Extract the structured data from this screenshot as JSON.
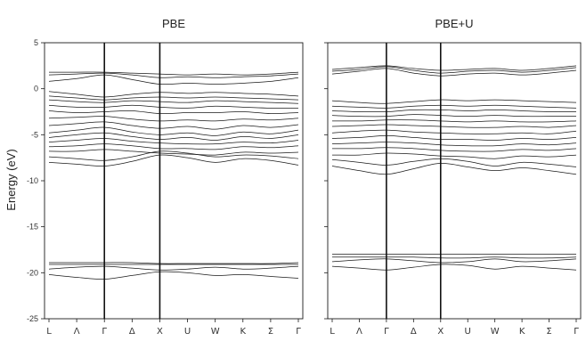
{
  "chart_data": [
    {
      "type": "line",
      "title": "PBE",
      "ylabel": "Energy (eV)",
      "ylim": [
        -25,
        5
      ],
      "yticks": [
        5,
        0,
        -5,
        -10,
        -15,
        -20,
        -25
      ],
      "xticklabels": [
        "L",
        "Λ",
        "Γ",
        "Δ",
        "X",
        "U",
        "W",
        "K",
        "Σ",
        "Γ"
      ],
      "high_symmetry_points": [
        "Γ",
        "X"
      ],
      "bands": [
        [
          1.8,
          1.8,
          1.8,
          1.7,
          1.6,
          1.5,
          1.6,
          1.5,
          1.6,
          1.8
        ],
        [
          1.5,
          1.6,
          1.7,
          1.5,
          1.2,
          1.3,
          1.2,
          1.3,
          1.4,
          1.6
        ],
        [
          0.8,
          1.1,
          1.5,
          1.0,
          0.5,
          0.6,
          0.5,
          0.6,
          0.8,
          1.2
        ],
        [
          -0.3,
          -0.6,
          -0.9,
          -0.6,
          -0.4,
          -0.5,
          -0.4,
          -0.5,
          -0.6,
          -0.8
        ],
        [
          -0.8,
          -1.0,
          -1.2,
          -1.0,
          -0.9,
          -1.0,
          -0.9,
          -1.0,
          -1.1,
          -1.2
        ],
        [
          -1.2,
          -1.4,
          -1.5,
          -1.3,
          -1.4,
          -1.5,
          -1.3,
          -1.4,
          -1.5,
          -1.6
        ],
        [
          -1.8,
          -2.0,
          -2.0,
          -1.8,
          -2.0,
          -2.1,
          -1.9,
          -2.0,
          -2.1,
          -2.1
        ],
        [
          -2.4,
          -2.6,
          -2.5,
          -2.4,
          -2.7,
          -2.6,
          -2.6,
          -2.5,
          -2.7,
          -2.6
        ],
        [
          -3.2,
          -3.1,
          -3.0,
          -3.3,
          -3.5,
          -3.4,
          -3.5,
          -3.3,
          -3.4,
          -3.2
        ],
        [
          -4.0,
          -3.8,
          -3.6,
          -4.0,
          -4.3,
          -4.1,
          -4.4,
          -4.0,
          -4.2,
          -3.9
        ],
        [
          -4.8,
          -4.5,
          -4.2,
          -4.7,
          -5.0,
          -4.8,
          -5.1,
          -4.7,
          -4.9,
          -4.5
        ],
        [
          -5.3,
          -5.0,
          -4.8,
          -5.2,
          -5.5,
          -5.3,
          -5.6,
          -5.2,
          -5.4,
          -5.0
        ],
        [
          -5.8,
          -5.6,
          -5.4,
          -5.7,
          -5.9,
          -6.0,
          -6.0,
          -5.8,
          -5.9,
          -5.6
        ],
        [
          -6.3,
          -6.2,
          -6.0,
          -6.2,
          -6.5,
          -6.5,
          -6.6,
          -6.3,
          -6.4,
          -6.2
        ],
        [
          -6.8,
          -6.8,
          -6.6,
          -6.8,
          -7.0,
          -7.1,
          -7.2,
          -6.9,
          -7.0,
          -6.9
        ],
        [
          -7.4,
          -7.6,
          -7.8,
          -7.4,
          -6.8,
          -7.0,
          -7.4,
          -7.2,
          -7.3,
          -7.6
        ],
        [
          -8.0,
          -8.2,
          -8.4,
          -7.9,
          -7.2,
          -7.5,
          -8.0,
          -7.6,
          -7.8,
          -8.3
        ],
        [
          -18.9,
          -18.9,
          -18.9,
          -18.9,
          -19.0,
          -19.0,
          -19.0,
          -19.0,
          -19.0,
          -18.9
        ],
        [
          -19.1,
          -19.1,
          -19.1,
          -19.1,
          -19.1,
          -19.1,
          -19.1,
          -19.1,
          -19.1,
          -19.1
        ],
        [
          -19.6,
          -19.4,
          -19.3,
          -19.5,
          -19.7,
          -19.6,
          -19.4,
          -19.6,
          -19.5,
          -19.3
        ],
        [
          -20.2,
          -20.5,
          -20.7,
          -20.3,
          -19.9,
          -20.0,
          -20.3,
          -20.2,
          -20.4,
          -20.6
        ]
      ]
    },
    {
      "type": "line",
      "title": "PBE+U",
      "ylim": [
        -25,
        5
      ],
      "yticks": [
        5,
        0,
        -5,
        -10,
        -15,
        -20,
        -25
      ],
      "xticklabels": [
        "L",
        "Λ",
        "Γ",
        "Δ",
        "X",
        "U",
        "W",
        "K",
        "Σ",
        "Γ"
      ],
      "high_symmetry_points": [
        "Γ",
        "X"
      ],
      "bands": [
        [
          2.1,
          2.3,
          2.5,
          2.2,
          2.0,
          2.1,
          2.2,
          2.0,
          2.2,
          2.5
        ],
        [
          1.9,
          2.1,
          2.4,
          2.0,
          1.7,
          1.9,
          2.0,
          1.8,
          2.0,
          2.3
        ],
        [
          1.6,
          1.9,
          2.2,
          1.7,
          1.4,
          1.6,
          1.7,
          1.5,
          1.7,
          2.0
        ],
        [
          -1.3,
          -1.5,
          -1.6,
          -1.4,
          -1.2,
          -1.3,
          -1.2,
          -1.3,
          -1.4,
          -1.5
        ],
        [
          -1.9,
          -2.0,
          -2.1,
          -1.9,
          -1.8,
          -1.9,
          -1.8,
          -1.9,
          -2.0,
          -2.1
        ],
        [
          -2.4,
          -2.5,
          -2.5,
          -2.3,
          -2.3,
          -2.4,
          -2.3,
          -2.4,
          -2.5,
          -2.5
        ],
        [
          -2.9,
          -3.0,
          -3.0,
          -2.8,
          -2.9,
          -3.0,
          -2.9,
          -3.0,
          -3.0,
          -3.0
        ],
        [
          -3.5,
          -3.5,
          -3.4,
          -3.4,
          -3.5,
          -3.6,
          -3.5,
          -3.6,
          -3.6,
          -3.5
        ],
        [
          -4.1,
          -4.0,
          -3.9,
          -4.0,
          -4.1,
          -4.2,
          -4.2,
          -4.1,
          -4.2,
          -4.0
        ],
        [
          -4.8,
          -4.6,
          -4.5,
          -4.7,
          -4.8,
          -4.9,
          -4.9,
          -4.8,
          -4.9,
          -4.6
        ],
        [
          -5.4,
          -5.3,
          -5.1,
          -5.3,
          -5.5,
          -5.5,
          -5.6,
          -5.4,
          -5.5,
          -5.3
        ],
        [
          -6.0,
          -5.9,
          -5.8,
          -5.9,
          -6.1,
          -6.2,
          -6.2,
          -6.0,
          -6.1,
          -5.9
        ],
        [
          -6.5,
          -6.5,
          -6.4,
          -6.5,
          -6.7,
          -6.8,
          -6.8,
          -6.6,
          -6.7,
          -6.5
        ],
        [
          -7.2,
          -7.2,
          -7.0,
          -7.1,
          -7.3,
          -7.4,
          -7.6,
          -7.3,
          -7.4,
          -7.2
        ],
        [
          -7.7,
          -8.0,
          -8.3,
          -7.9,
          -7.6,
          -7.9,
          -8.4,
          -8.0,
          -8.2,
          -8.5
        ],
        [
          -8.4,
          -8.9,
          -9.3,
          -8.7,
          -8.1,
          -8.5,
          -8.9,
          -8.6,
          -8.9,
          -9.3
        ],
        [
          -18.0,
          -18.0,
          -18.0,
          -18.0,
          -18.0,
          -18.0,
          -18.0,
          -18.0,
          -18.0,
          -18.0
        ],
        [
          -18.3,
          -18.3,
          -18.3,
          -18.3,
          -18.4,
          -18.4,
          -18.3,
          -18.4,
          -18.4,
          -18.3
        ],
        [
          -18.8,
          -18.6,
          -18.5,
          -18.7,
          -18.9,
          -18.8,
          -18.5,
          -18.8,
          -18.7,
          -18.5
        ],
        [
          -19.3,
          -19.5,
          -19.7,
          -19.4,
          -19.1,
          -19.2,
          -19.6,
          -19.3,
          -19.5,
          -19.7
        ]
      ]
    }
  ]
}
